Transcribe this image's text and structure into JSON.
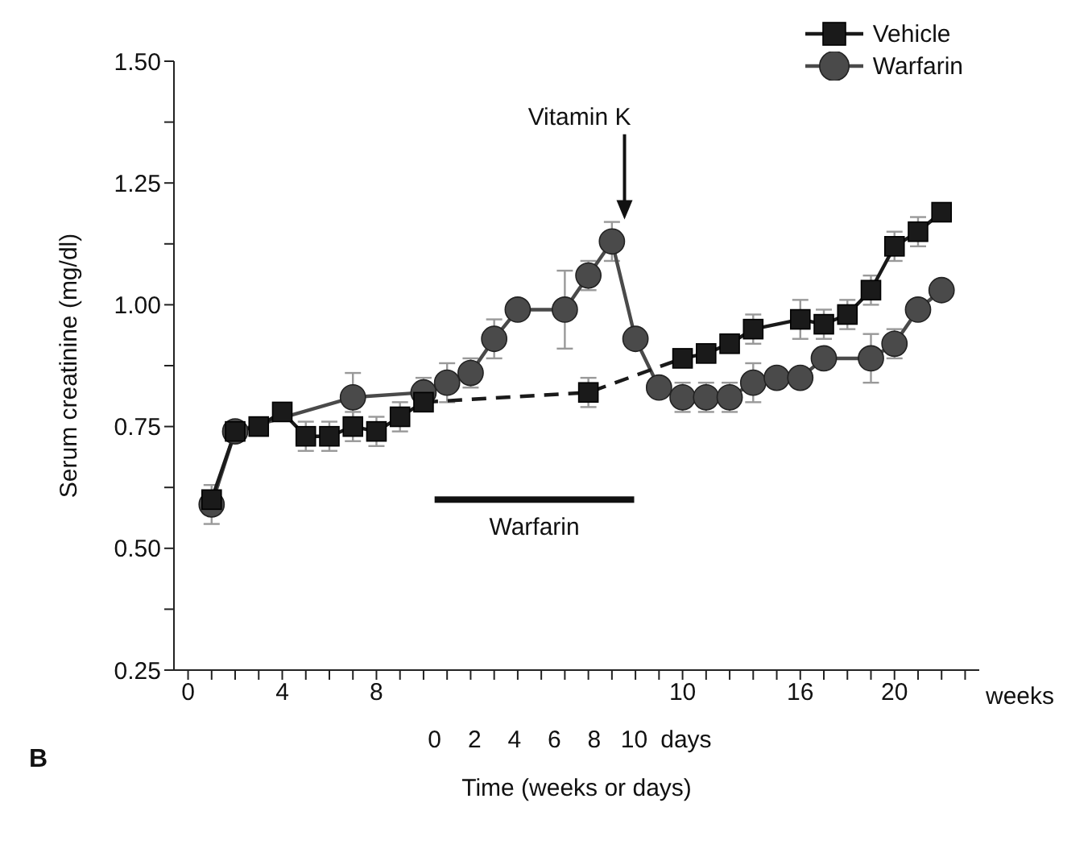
{
  "chart_data": {
    "type": "line",
    "xlabel": "Time (weeks or days)",
    "ylabel": "Serum creatinine (mg/dl)",
    "categories": [
      "0",
      null,
      null,
      null,
      "4",
      null,
      null,
      null,
      "8",
      null,
      null,
      null,
      null,
      null,
      null,
      null,
      null,
      null,
      null,
      null,
      null,
      "10",
      null,
      null,
      null,
      null,
      "16",
      null,
      null,
      null,
      "20",
      null,
      null,
      null
    ],
    "x2lim": [
      -13.06,
      27.29
    ],
    "x2ticks": [
      0,
      2,
      4,
      6,
      8,
      10,
      {
        "value": 12.6,
        "label": "days"
      }
    ],
    "ylim": [
      0.25,
      1.5
    ],
    "yticks": [
      0.25,
      {
        "value": 0.375,
        "label": null
      },
      {
        "value": 0.5,
        "label": "0.50"
      },
      {
        "value": 0.625,
        "label": null
      },
      0.75,
      {
        "value": 0.875,
        "label": null
      },
      {
        "value": 1,
        "label": "1.00"
      },
      {
        "value": 1.125,
        "label": null
      },
      1.25,
      {
        "value": 1.375,
        "label": null
      },
      {
        "value": 1.5,
        "label": "1.50"
      }
    ],
    "grid": false,
    "legend": "top right",
    "series": [
      {
        "name": "Vehicle",
        "color": "#1a1a1a",
        "marker": "square",
        "values": [
          null,
          0.6,
          0.74,
          0.75,
          0.78,
          0.73,
          0.73,
          0.75,
          0.74,
          0.77,
          0.8,
          null,
          null,
          null,
          null,
          null,
          null,
          null,
          null,
          null,
          null,
          null,
          null,
          null,
          null,
          null,
          null,
          null,
          null,
          null,
          null,
          null,
          null,
          null
        ],
        "errors": [
          null,
          null,
          null,
          null,
          null,
          0.03,
          0.03,
          0.03,
          0.03,
          0.03,
          null,
          null,
          null,
          null,
          null,
          null,
          null,
          null,
          null,
          null,
          null,
          null,
          null,
          null,
          null,
          null,
          null,
          null,
          null,
          null,
          null,
          null,
          null,
          null
        ]
      },
      {
        "color": "#1a1a1a",
        "line_style": "dashed",
        "values": [
          null,
          null,
          null,
          null,
          null,
          null,
          null,
          null,
          null,
          null,
          0.8,
          null,
          null,
          null,
          null,
          null,
          null,
          0.82,
          null,
          null,
          null,
          0.89,
          null,
          null,
          null,
          null,
          null,
          null,
          null,
          null,
          null,
          null,
          null,
          null
        ]
      },
      {
        "type": "scatter",
        "color": "#1a1a1a",
        "marker": "square",
        "values": [
          null,
          null,
          null,
          null,
          null,
          null,
          null,
          null,
          null,
          null,
          null,
          null,
          null,
          null,
          null,
          null,
          null,
          0.82,
          null,
          null,
          null,
          null,
          null,
          null,
          null,
          null,
          null,
          null,
          null,
          null,
          null,
          null,
          null,
          null
        ],
        "errors": [
          null,
          null,
          null,
          null,
          null,
          null,
          null,
          null,
          null,
          null,
          null,
          null,
          null,
          null,
          null,
          null,
          null,
          0.03,
          null,
          null,
          null,
          null,
          null,
          null,
          null,
          null,
          null,
          null,
          null,
          null,
          null,
          null,
          null,
          null
        ]
      },
      {
        "color": "#1a1a1a",
        "marker": "square",
        "values": [
          null,
          null,
          null,
          null,
          null,
          null,
          null,
          null,
          null,
          null,
          null,
          null,
          null,
          null,
          null,
          null,
          null,
          null,
          null,
          null,
          null,
          0.89,
          0.9,
          0.92,
          0.95,
          null,
          0.97,
          0.96,
          0.98,
          1.03,
          1.12,
          1.15,
          1.19,
          null
        ],
        "errors": [
          null,
          null,
          null,
          null,
          null,
          null,
          null,
          null,
          null,
          null,
          null,
          null,
          null,
          null,
          null,
          null,
          null,
          null,
          null,
          null,
          null,
          null,
          null,
          null,
          0.03,
          null,
          0.04,
          0.03,
          0.03,
          0.03,
          0.03,
          0.03,
          null,
          null
        ]
      },
      {
        "name": "Warfarin",
        "color": "#4a4a4a",
        "marker": "circle",
        "values": [
          null,
          0.59,
          0.74,
          null,
          null,
          null,
          null,
          0.81,
          null,
          null,
          0.82,
          0.84,
          0.86,
          0.93,
          0.99,
          null,
          0.99,
          1.06,
          1.13,
          0.93,
          0.83,
          0.81,
          0.81,
          0.81,
          0.84,
          0.85,
          0.85,
          0.89,
          null,
          0.89,
          0.92,
          0.99,
          1.03,
          null
        ],
        "errors": [
          null,
          0.04,
          null,
          null,
          null,
          null,
          null,
          0.05,
          null,
          null,
          0.03,
          0.04,
          0.03,
          0.04,
          null,
          null,
          0.08,
          0.03,
          0.04,
          null,
          null,
          0.03,
          0.03,
          0.03,
          0.04,
          null,
          null,
          null,
          null,
          0.05,
          0.03,
          null,
          null,
          null
        ]
      }
    ],
    "annotations": [
      "B",
      "Warfarin",
      "weeks",
      "Vitamin K"
    ]
  }
}
